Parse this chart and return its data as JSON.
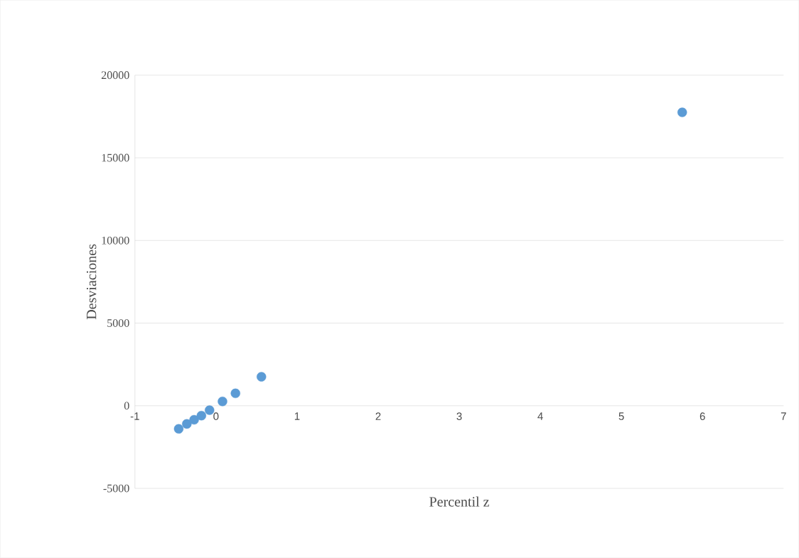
{
  "chart_data": {
    "type": "scatter",
    "xlabel": "Percentil z",
    "ylabel": "Desviaciones",
    "x": [
      -0.46,
      -0.36,
      -0.27,
      -0.18,
      -0.08,
      0.08,
      0.24,
      0.56,
      5.75
    ],
    "values": [
      -1400,
      -1100,
      -850,
      -600,
      -270,
      260,
      750,
      1750,
      17750
    ],
    "color": "#5b9bd5",
    "marker": "circle",
    "xlim": [
      -1,
      7
    ],
    "ylim": [
      -5000,
      20000
    ],
    "xticks": [
      -1,
      0,
      1,
      2,
      3,
      4,
      5,
      6,
      7
    ],
    "yticks": [
      -5000,
      0,
      5000,
      10000,
      15000,
      20000
    ],
    "grid": "y"
  }
}
